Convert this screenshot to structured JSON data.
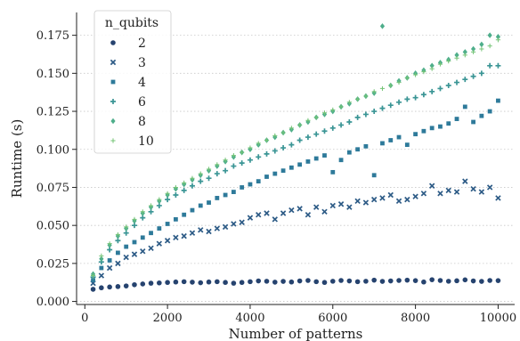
{
  "chart_data": {
    "type": "scatter",
    "xlabel": "Number of patterns",
    "ylabel": "Runtime (s)",
    "xlim": [
      -200,
      10400
    ],
    "ylim": [
      -0.002,
      0.19
    ],
    "xticks": [
      0,
      2000,
      4000,
      6000,
      8000,
      10000
    ],
    "xtick_labels": [
      "0",
      "2000",
      "4000",
      "6000",
      "8000",
      "10000"
    ],
    "yticks": [
      0.0,
      0.025,
      0.05,
      0.075,
      0.1,
      0.125,
      0.15,
      0.175
    ],
    "ytick_labels": [
      "0.000",
      "0.025",
      "0.050",
      "0.075",
      "0.100",
      "0.125",
      "0.150",
      "0.175"
    ],
    "grid": "horizontal dotted",
    "legend": {
      "title": "n_qubits",
      "placement": "top-left"
    },
    "series": [
      {
        "name": "2",
        "marker": "circle",
        "color": "#26436f",
        "x": [
          200,
          400,
          600,
          800,
          1000,
          1200,
          1400,
          1600,
          1800,
          2000,
          2200,
          2400,
          2600,
          2800,
          3000,
          3200,
          3400,
          3600,
          3800,
          4000,
          4200,
          4400,
          4600,
          4800,
          5000,
          5200,
          5400,
          5600,
          5800,
          6000,
          6200,
          6400,
          6600,
          6800,
          7000,
          7200,
          7400,
          7600,
          7800,
          8000,
          8200,
          8400,
          8600,
          8800,
          9000,
          9200,
          9400,
          9600,
          9800,
          10000
        ],
        "y": [
          0.008,
          0.009,
          0.0095,
          0.0098,
          0.0102,
          0.011,
          0.0115,
          0.012,
          0.0122,
          0.0125,
          0.0128,
          0.013,
          0.0127,
          0.0123,
          0.0128,
          0.013,
          0.0125,
          0.012,
          0.0125,
          0.013,
          0.0135,
          0.0133,
          0.0127,
          0.0132,
          0.0128,
          0.0135,
          0.0138,
          0.013,
          0.0125,
          0.0133,
          0.0138,
          0.0135,
          0.013,
          0.0133,
          0.014,
          0.0132,
          0.0135,
          0.0138,
          0.014,
          0.0137,
          0.0128,
          0.0143,
          0.0138,
          0.0133,
          0.0136,
          0.0142,
          0.0135,
          0.0132,
          0.0138,
          0.0137
        ]
      },
      {
        "name": "3",
        "marker": "x",
        "color": "#2d5b86",
        "x": [
          200,
          400,
          600,
          800,
          1000,
          1200,
          1400,
          1600,
          1800,
          2000,
          2200,
          2400,
          2600,
          2800,
          3000,
          3200,
          3400,
          3600,
          3800,
          4000,
          4200,
          4400,
          4600,
          4800,
          5000,
          5200,
          5400,
          5600,
          5800,
          6000,
          6200,
          6400,
          6600,
          6800,
          7000,
          7200,
          7400,
          7600,
          7800,
          8000,
          8200,
          8400,
          8600,
          8800,
          9000,
          9200,
          9400,
          9600,
          9800,
          10000
        ],
        "y": [
          0.012,
          0.017,
          0.022,
          0.025,
          0.029,
          0.031,
          0.033,
          0.035,
          0.038,
          0.04,
          0.042,
          0.043,
          0.045,
          0.047,
          0.046,
          0.048,
          0.049,
          0.051,
          0.052,
          0.055,
          0.057,
          0.058,
          0.054,
          0.058,
          0.06,
          0.061,
          0.057,
          0.062,
          0.059,
          0.063,
          0.064,
          0.062,
          0.066,
          0.065,
          0.067,
          0.068,
          0.07,
          0.066,
          0.067,
          0.069,
          0.071,
          0.076,
          0.071,
          0.073,
          0.072,
          0.079,
          0.074,
          0.072,
          0.075,
          0.068
        ]
      },
      {
        "name": "4",
        "marker": "square",
        "color": "#2e7a9a",
        "x": [
          200,
          400,
          600,
          800,
          1000,
          1200,
          1400,
          1600,
          1800,
          2000,
          2200,
          2400,
          2600,
          2800,
          3000,
          3200,
          3400,
          3600,
          3800,
          4000,
          4200,
          4400,
          4600,
          4800,
          5000,
          5200,
          5400,
          5600,
          5800,
          6000,
          6200,
          6400,
          6600,
          6800,
          7000,
          7200,
          7400,
          7600,
          7800,
          8000,
          8200,
          8400,
          8600,
          8800,
          9000,
          9200,
          9400,
          9600,
          9800,
          10000
        ],
        "y": [
          0.014,
          0.022,
          0.027,
          0.032,
          0.036,
          0.039,
          0.042,
          0.045,
          0.048,
          0.051,
          0.054,
          0.057,
          0.06,
          0.063,
          0.065,
          0.068,
          0.07,
          0.072,
          0.075,
          0.077,
          0.079,
          0.082,
          0.084,
          0.086,
          0.088,
          0.09,
          0.092,
          0.094,
          0.096,
          0.085,
          0.093,
          0.098,
          0.1,
          0.102,
          0.083,
          0.104,
          0.106,
          0.108,
          0.103,
          0.11,
          0.112,
          0.114,
          0.115,
          0.117,
          0.12,
          0.128,
          0.118,
          0.122,
          0.125,
          0.132
        ]
      },
      {
        "name": "6",
        "marker": "plus",
        "color": "#3a9595",
        "x": [
          200,
          400,
          600,
          800,
          1000,
          1200,
          1400,
          1600,
          1800,
          2000,
          2200,
          2400,
          2600,
          2800,
          3000,
          3200,
          3400,
          3600,
          3800,
          4000,
          4200,
          4400,
          4600,
          4800,
          5000,
          5200,
          5400,
          5600,
          5800,
          6000,
          6200,
          6400,
          6600,
          6800,
          7000,
          7200,
          7400,
          7600,
          7800,
          8000,
          8200,
          8400,
          8600,
          8800,
          9000,
          9200,
          9400,
          9600,
          9800,
          10000
        ],
        "y": [
          0.016,
          0.026,
          0.034,
          0.04,
          0.045,
          0.05,
          0.055,
          0.059,
          0.063,
          0.067,
          0.07,
          0.073,
          0.076,
          0.079,
          0.081,
          0.084,
          0.086,
          0.089,
          0.091,
          0.093,
          0.095,
          0.097,
          0.099,
          0.101,
          0.103,
          0.106,
          0.108,
          0.11,
          0.112,
          0.114,
          0.116,
          0.118,
          0.121,
          0.123,
          0.125,
          0.127,
          0.129,
          0.131,
          0.133,
          0.134,
          0.136,
          0.138,
          0.14,
          0.142,
          0.144,
          0.146,
          0.148,
          0.15,
          0.155,
          0.155
        ]
      },
      {
        "name": "8",
        "marker": "diamond",
        "color": "#4eae8b",
        "x": [
          200,
          400,
          600,
          800,
          1000,
          1200,
          1400,
          1600,
          1800,
          2000,
          2200,
          2400,
          2600,
          2800,
          3000,
          3200,
          3400,
          3600,
          3800,
          4000,
          4200,
          4400,
          4600,
          4800,
          5000,
          5200,
          5400,
          5600,
          5800,
          6000,
          6200,
          6400,
          6600,
          6800,
          7000,
          7200,
          7400,
          7600,
          7800,
          8000,
          8200,
          8400,
          8600,
          8800,
          9000,
          9200,
          9400,
          9600,
          9800,
          10000
        ],
        "y": [
          0.018,
          0.028,
          0.037,
          0.043,
          0.048,
          0.053,
          0.058,
          0.062,
          0.066,
          0.07,
          0.074,
          0.077,
          0.08,
          0.083,
          0.086,
          0.089,
          0.092,
          0.095,
          0.098,
          0.1,
          0.103,
          0.106,
          0.108,
          0.111,
          0.113,
          0.116,
          0.118,
          0.121,
          0.123,
          0.125,
          0.128,
          0.13,
          0.133,
          0.135,
          0.137,
          0.181,
          0.142,
          0.145,
          0.147,
          0.15,
          0.152,
          0.155,
          0.157,
          0.159,
          0.162,
          0.164,
          0.166,
          0.169,
          0.175,
          0.174
        ]
      },
      {
        "name": "10",
        "marker": "thin-plus",
        "color": "#74c476",
        "x": [
          200,
          400,
          600,
          800,
          1000,
          1200,
          1400,
          1600,
          1800,
          2000,
          2200,
          2400,
          2600,
          2800,
          3000,
          3200,
          3400,
          3600,
          3800,
          4000,
          4200,
          4400,
          4600,
          4800,
          5000,
          5200,
          5400,
          5600,
          5800,
          6000,
          6200,
          6400,
          6600,
          6800,
          7000,
          7200,
          7400,
          7600,
          7800,
          8000,
          8200,
          8400,
          8600,
          8800,
          9000,
          9200,
          9400,
          9600,
          9800,
          10000
        ],
        "y": [
          0.017,
          0.03,
          0.038,
          0.044,
          0.049,
          0.054,
          0.059,
          0.063,
          0.067,
          0.071,
          0.075,
          0.078,
          0.081,
          0.084,
          0.087,
          0.09,
          0.093,
          0.096,
          0.098,
          0.101,
          0.104,
          0.106,
          0.109,
          0.111,
          0.114,
          0.116,
          0.119,
          0.121,
          0.124,
          0.126,
          0.128,
          0.131,
          0.133,
          0.135,
          0.138,
          0.14,
          0.142,
          0.144,
          0.147,
          0.149,
          0.151,
          0.153,
          0.156,
          0.158,
          0.16,
          0.162,
          0.164,
          0.166,
          0.168,
          0.172
        ]
      }
    ]
  }
}
